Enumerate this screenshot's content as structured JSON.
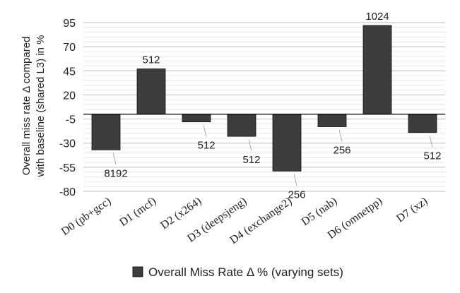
{
  "chart_data": {
    "type": "bar",
    "categories": [
      "D0 (pb+gcc)",
      "D1 (mcf)",
      "D2 (x264)",
      "D3 (deepsjeng)",
      "D4 (exchange2)",
      "D5 (nab)",
      "D6 (omnetpp)",
      "D7 (xz)"
    ],
    "series": [
      {
        "name": "Overall Miss Rate Δ % (varying sets)",
        "values": [
          -37,
          47,
          -8,
          -23,
          -59,
          -13,
          92,
          -19
        ],
        "data_labels": [
          "8192",
          "512",
          "512",
          "512",
          "256",
          "256",
          "1024",
          "512"
        ],
        "color": "#3d3d3d"
      }
    ],
    "yticks": [
      95,
      70,
      45,
      20,
      -5,
      -30,
      -55,
      -80
    ],
    "ylim": [
      -80,
      95
    ],
    "ylabel_line1": "Overall miss rate Δ compared",
    "ylabel_line2": "with baseline (shared L3) in %",
    "xlabel": "",
    "title": "",
    "grid": true,
    "legend": {
      "position": "bottom",
      "label": "Overall Miss Rate Δ % (varying sets)"
    }
  }
}
